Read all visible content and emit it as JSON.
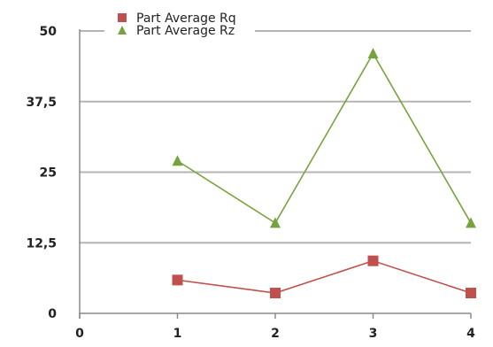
{
  "chart_data": {
    "type": "line",
    "title": "",
    "xlabel": "",
    "ylabel": "",
    "x": [
      1,
      2,
      3,
      4
    ],
    "x_ticks": [
      "0",
      "1",
      "2",
      "3",
      "4"
    ],
    "xlim": [
      0,
      4
    ],
    "y_ticks": [
      "0",
      "12,5",
      "25",
      "37,5",
      "50"
    ],
    "ylim": [
      0,
      50
    ],
    "grid": "horizontal",
    "legend": "top",
    "series": [
      {
        "name": "Part Average Rq",
        "values": [
          5.9,
          3.6,
          9.3,
          3.6
        ],
        "color": "#c0504d",
        "marker": "square"
      },
      {
        "name": "Part Average Rz",
        "values": [
          27.0,
          16.0,
          46.0,
          16.0
        ],
        "color": "#77a33c",
        "marker": "triangle"
      }
    ]
  }
}
